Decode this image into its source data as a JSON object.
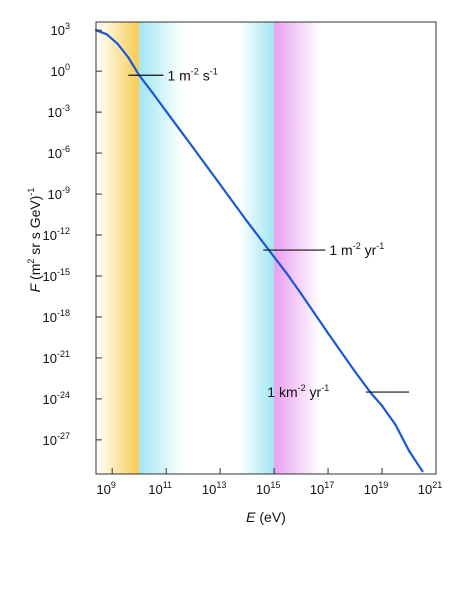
{
  "chart_data": {
    "type": "line",
    "title": "",
    "xlabel": {
      "var": "E",
      "rest": " (eV)"
    },
    "ylabel": {
      "var": "F",
      "rest": " (m",
      "sup1": "2",
      "mid": " sr s GeV)",
      "sup2": "-1"
    },
    "x_scale": "log",
    "y_scale": "log",
    "xlim_exp": [
      8.4,
      21
    ],
    "ylim_exp": [
      -29.5,
      3.6
    ],
    "x_ticks": [
      {
        "exp": 9,
        "base": "10",
        "sup": "9"
      },
      {
        "exp": 11,
        "base": "10",
        "sup": "11"
      },
      {
        "exp": 13,
        "base": "10",
        "sup": "13"
      },
      {
        "exp": 15,
        "base": "10",
        "sup": "15"
      },
      {
        "exp": 17,
        "base": "10",
        "sup": "17"
      },
      {
        "exp": 19,
        "base": "10",
        "sup": "19"
      },
      {
        "exp": 21,
        "base": "10",
        "sup": "21"
      }
    ],
    "y_ticks": [
      {
        "exp": 3,
        "base": "10",
        "sup": "3"
      },
      {
        "exp": 0,
        "base": "10",
        "sup": "0"
      },
      {
        "exp": -3,
        "base": "10",
        "sup": "-3"
      },
      {
        "exp": -6,
        "base": "10",
        "sup": "-6"
      },
      {
        "exp": -9,
        "base": "10",
        "sup": "-9"
      },
      {
        "exp": -12,
        "base": "10",
        "sup": "-12"
      },
      {
        "exp": -15,
        "base": "10",
        "sup": "-15"
      },
      {
        "exp": -18,
        "base": "10",
        "sup": "-18"
      },
      {
        "exp": -21,
        "base": "10",
        "sup": "-21"
      },
      {
        "exp": -24,
        "base": "10",
        "sup": "-24"
      },
      {
        "exp": -27,
        "base": "10",
        "sup": "-27"
      }
    ],
    "bands": [
      {
        "from": 8.4,
        "to": 10.0,
        "color": "#f8cc52",
        "fade": "left"
      },
      {
        "from": 10.0,
        "to": 11.6,
        "color": "#9fe6f2",
        "fade": "right"
      },
      {
        "from": 13.7,
        "to": 15.0,
        "color": "#9fe6f2",
        "fade": "left"
      },
      {
        "from": 15.0,
        "to": 16.7,
        "color": "#ea9ff0",
        "fade": "right"
      }
    ],
    "series": [
      {
        "color": "#1a57d8",
        "points": [
          [
            8.4,
            3.0
          ],
          [
            8.8,
            2.7
          ],
          [
            9.2,
            2.0
          ],
          [
            9.6,
            1.0
          ],
          [
            10.0,
            -0.3
          ],
          [
            10.5,
            -1.6
          ],
          [
            11.0,
            -2.95
          ],
          [
            12.0,
            -5.6
          ],
          [
            13.0,
            -8.3
          ],
          [
            14.0,
            -11.0
          ],
          [
            15.0,
            -13.6
          ],
          [
            15.5,
            -14.9
          ],
          [
            16.0,
            -16.3
          ],
          [
            17.0,
            -19.2
          ],
          [
            18.0,
            -22.0
          ],
          [
            18.6,
            -23.6
          ],
          [
            19.0,
            -24.5
          ],
          [
            19.5,
            -25.9
          ],
          [
            20.0,
            -27.8
          ],
          [
            20.5,
            -29.3
          ]
        ]
      }
    ],
    "annotations": [
      {
        "base": "1 m",
        "sup1": "-2",
        "mid": " s",
        "sup2": "-1",
        "line_from": 9.6,
        "line_to": 10.9,
        "y": -0.3,
        "text_x": 10.9
      },
      {
        "base": "1 m",
        "sup1": "-2",
        "mid": " yr",
        "sup2": "-1",
        "line_from": 14.6,
        "line_to": 16.9,
        "y": -13.1,
        "text_x": 16.9
      },
      {
        "base": "1 km",
        "sup1": "-2",
        "mid": " yr",
        "sup2": "-1",
        "line_from": 18.4,
        "line_to": 20.0,
        "y": -23.5,
        "text_x": 14.6
      }
    ]
  }
}
